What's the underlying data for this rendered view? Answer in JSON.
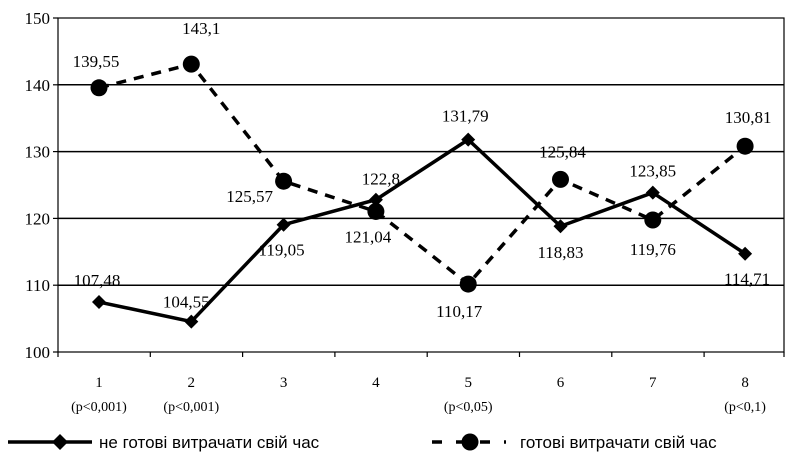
{
  "chart_data": {
    "type": "line",
    "title": "",
    "xlabel": "",
    "ylabel": "",
    "ylim": [
      100,
      150
    ],
    "yticks": [
      100,
      110,
      120,
      130,
      140,
      150
    ],
    "grid": "horizontal",
    "legend_position": "bottom",
    "categories": [
      "1",
      "2",
      "3",
      "4",
      "5",
      "6",
      "7",
      "8"
    ],
    "category_sublabels": [
      "(p<0,001)",
      "(p<0,001)",
      "",
      "",
      "(p<0,05)",
      "",
      "",
      "(p<0,1)"
    ],
    "series": [
      {
        "name": "не готові витрачати свій час",
        "style": "solid",
        "marker": "diamond",
        "color": "#000000",
        "values": [
          107.48,
          104.55,
          119.05,
          122.8,
          131.79,
          118.83,
          123.85,
          114.71
        ],
        "value_labels": [
          "107,48",
          "104,55",
          "119,05",
          "122,8",
          "131,79",
          "118,83",
          "123,85",
          "114,71"
        ]
      },
      {
        "name": "готові витрачати свій час",
        "style": "dashed",
        "marker": "circle",
        "color": "#000000",
        "values": [
          139.55,
          143.1,
          125.57,
          121.04,
          110.17,
          125.84,
          119.76,
          130.81
        ],
        "value_labels": [
          "139,55",
          "143,1",
          "125,57",
          "121,04",
          "110,17",
          "125,84",
          "119,76",
          "130,81"
        ]
      }
    ]
  }
}
